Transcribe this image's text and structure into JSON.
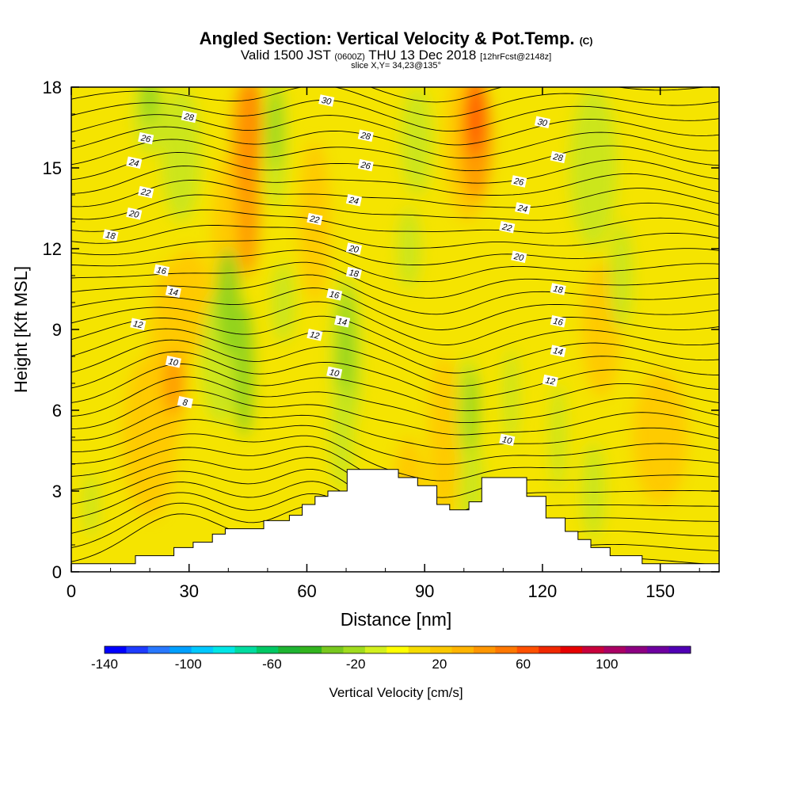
{
  "chart_data": {
    "type": "heatmap",
    "title": "Angled Section: Vertical Velocity & Pot.Temp.",
    "title_tag": "(C)",
    "subtitle_main": "Valid 1500 JST",
    "subtitle_utc": "(0600Z)",
    "subtitle_date": "THU 13 Dec 2018",
    "subtitle_fcst": "[12hrFcst@2148z]",
    "slice_label": "slice X,Y= 34,23@135°",
    "xlabel": "Distance [nm]",
    "ylabel": "Height [Kft MSL]",
    "xlim": [
      0,
      165
    ],
    "ylim": [
      0,
      18
    ],
    "x_ticks": [
      "0",
      "30",
      "60",
      "90",
      "120",
      "150"
    ],
    "x_tick_values": [
      0,
      30,
      60,
      90,
      120,
      150
    ],
    "y_ticks": [
      "0",
      "3",
      "6",
      "9",
      "12",
      "15",
      "18"
    ],
    "y_tick_values": [
      0,
      3,
      6,
      9,
      12,
      15,
      18
    ],
    "colorbar": {
      "label": "Vertical Velocity [cm/s]",
      "range": [
        -140,
        140
      ],
      "tick_labels": [
        "-140",
        "-100",
        "-60",
        "-20",
        "20",
        "60",
        "100"
      ],
      "tick_values": [
        -140,
        -100,
        -60,
        -20,
        20,
        60,
        100
      ],
      "colors": [
        "#0000ff",
        "#1e3cff",
        "#2878ff",
        "#00a0ff",
        "#00c8ff",
        "#00e6e6",
        "#00dca0",
        "#00c864",
        "#1eb432",
        "#32b41e",
        "#78c81e",
        "#a0dc1e",
        "#d2f01e",
        "#ffff00",
        "#f5dc00",
        "#fac800",
        "#ffb400",
        "#ff9600",
        "#ff7800",
        "#ff5000",
        "#f02800",
        "#e60000",
        "#c8003c",
        "#aa0064",
        "#8c0082",
        "#6e00a0",
        "#5000b4"
      ]
    },
    "theta_contour_labels": [
      {
        "value": "8",
        "x": 29,
        "y": 6.3
      },
      {
        "value": "10",
        "x": 26,
        "y": 7.8
      },
      {
        "value": "10",
        "x": 67,
        "y": 7.4
      },
      {
        "value": "10",
        "x": 111,
        "y": 4.9
      },
      {
        "value": "12",
        "x": 17,
        "y": 9.2
      },
      {
        "value": "12",
        "x": 62,
        "y": 8.8
      },
      {
        "value": "12",
        "x": 122,
        "y": 7.1
      },
      {
        "value": "14",
        "x": 26,
        "y": 10.4
      },
      {
        "value": "14",
        "x": 69,
        "y": 9.3
      },
      {
        "value": "14",
        "x": 124,
        "y": 8.2
      },
      {
        "value": "16",
        "x": 23,
        "y": 11.2
      },
      {
        "value": "16",
        "x": 67,
        "y": 10.3
      },
      {
        "value": "16",
        "x": 124,
        "y": 9.3
      },
      {
        "value": "18",
        "x": 10,
        "y": 12.5
      },
      {
        "value": "18",
        "x": 72,
        "y": 11.1
      },
      {
        "value": "18",
        "x": 124,
        "y": 10.5
      },
      {
        "value": "20",
        "x": 16,
        "y": 13.3
      },
      {
        "value": "20",
        "x": 72,
        "y": 12.0
      },
      {
        "value": "20",
        "x": 114,
        "y": 11.7
      },
      {
        "value": "22",
        "x": 19,
        "y": 14.1
      },
      {
        "value": "22",
        "x": 62,
        "y": 13.1
      },
      {
        "value": "22",
        "x": 111,
        "y": 12.8
      },
      {
        "value": "24",
        "x": 16,
        "y": 15.2
      },
      {
        "value": "24",
        "x": 72,
        "y": 13.8
      },
      {
        "value": "24",
        "x": 115,
        "y": 13.5
      },
      {
        "value": "26",
        "x": 19,
        "y": 16.1
      },
      {
        "value": "26",
        "x": 75,
        "y": 15.1
      },
      {
        "value": "26",
        "x": 114,
        "y": 14.5
      },
      {
        "value": "28",
        "x": 30,
        "y": 16.9
      },
      {
        "value": "28",
        "x": 75,
        "y": 16.2
      },
      {
        "value": "28",
        "x": 124,
        "y": 15.4
      },
      {
        "value": "30",
        "x": 65,
        "y": 17.5
      },
      {
        "value": "30",
        "x": 120,
        "y": 16.7
      }
    ],
    "terrain_kft": [
      0.3,
      0.3,
      0.3,
      0.3,
      0.3,
      0.3,
      0.3,
      0.3,
      0.3,
      0.3,
      0.6,
      0.6,
      0.6,
      0.6,
      0.6,
      0.6,
      0.9,
      0.9,
      0.9,
      1.1,
      1.1,
      1.1,
      1.4,
      1.4,
      1.6,
      1.6,
      1.6,
      1.6,
      1.6,
      1.6,
      1.9,
      1.9,
      1.9,
      1.9,
      2.1,
      2.1,
      2.5,
      2.5,
      2.8,
      2.8,
      3.0,
      3.0,
      3.0,
      3.8,
      3.8,
      3.8,
      3.8,
      3.8,
      3.8,
      3.8,
      3.8,
      3.5,
      3.5,
      3.5,
      3.2,
      3.2,
      3.2,
      2.5,
      2.5,
      2.3,
      2.3,
      2.3,
      2.6,
      2.6,
      3.5,
      3.5,
      3.5,
      3.5,
      3.5,
      3.5,
      3.5,
      2.8,
      2.8,
      2.8,
      2.0,
      2.0,
      2.0,
      1.5,
      1.5,
      1.2,
      1.2,
      0.9,
      0.9,
      0.9,
      0.6,
      0.6,
      0.6,
      0.6,
      0.6,
      0.3,
      0.3,
      0.3,
      0.3,
      0.3,
      0.3,
      0.3,
      0.3,
      0.3,
      0.3,
      0.3,
      0.3
    ]
  }
}
